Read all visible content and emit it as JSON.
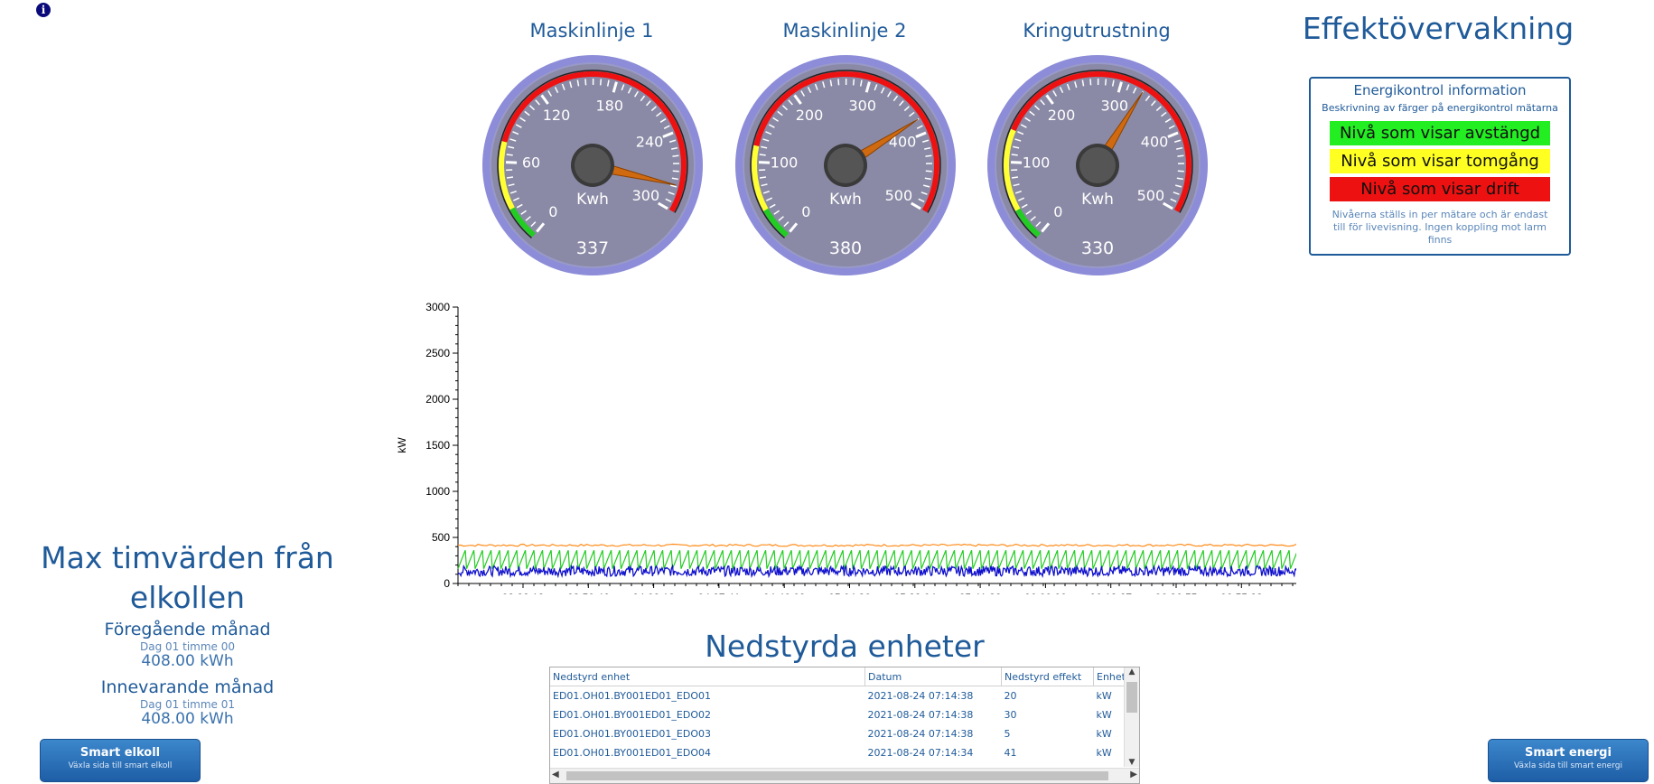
{
  "gauges": [
    {
      "title": "Maskinlinje 1",
      "unit": "Kwh",
      "value_label": "337",
      "value": 337,
      "max": 360,
      "ticks": [
        "0",
        "60",
        "120",
        "180",
        "240",
        "300"
      ],
      "zones": {
        "green_end": 30,
        "yellow_end": 90
      }
    },
    {
      "title": "Maskinlinje 2",
      "unit": "Kwh",
      "value_label": "380",
      "value": 380,
      "max": 500,
      "ticks": [
        "0",
        "100",
        "200",
        "300",
        "400",
        "500"
      ],
      "zones": {
        "green_end": 40,
        "yellow_end": 120
      }
    },
    {
      "title": "Kringutrustning",
      "unit": "Kwh",
      "value_label": "330",
      "value": 330,
      "max": 500,
      "ticks": [
        "0",
        "100",
        "200",
        "300",
        "400",
        "500"
      ],
      "zones": {
        "green_end": 40,
        "yellow_end": 140
      }
    }
  ],
  "header": {
    "title": "Effektövervakning"
  },
  "info_box": {
    "title": "Energikontrol information",
    "subtitle": "Beskrivning av färger på energikontrol mätarna",
    "levels": [
      {
        "label": "Nivå som visar avstängd",
        "color": "#22ee22"
      },
      {
        "label": "Nivå som visar tomgång",
        "color": "#ffff22"
      },
      {
        "label": "Nivå som visar drift",
        "color": "#ee1111"
      }
    ],
    "note": "Nivåerna ställs in per mätare och är endast till för livevisning. Ingen koppling mot larm finns"
  },
  "chart_data": {
    "type": "line",
    "ylabel": "kW",
    "xlabel": "",
    "ylim": [
      0,
      3000
    ],
    "yticks": [
      "0",
      "500",
      "1000",
      "1500",
      "2000",
      "2500",
      "3000"
    ],
    "xticks": [
      "03:32:18",
      "03:50:46",
      "04:09:13",
      "04:27:41",
      "04:46:09",
      "05:04:36",
      "05:23:04",
      "05:41:32",
      "06:00:00",
      "06:18:27",
      "06:36:55",
      "06:55:23"
    ],
    "series": [
      {
        "color": "#ff8c1a",
        "level": 415,
        "noise": 12,
        "shape": "flat"
      },
      {
        "color": "#22cc22",
        "level": 160,
        "amp": 200,
        "shape": "saw"
      },
      {
        "color": "#1010cc",
        "level": 135,
        "noise": 55,
        "shape": "noise"
      }
    ]
  },
  "max_values": {
    "title": "Max timvärden från elkollen",
    "previous": {
      "label": "Föregående månad",
      "sub": "Dag 01 timme 00",
      "value": "408.00 kWh"
    },
    "current": {
      "label": "Innevarande månad",
      "sub": "Dag 01 timme 01",
      "value": "408.00 kWh"
    }
  },
  "buttons": {
    "left": {
      "label": "Smart elkoll",
      "sub": "Växla sida till smart elkoll"
    },
    "right": {
      "label": "Smart energi",
      "sub": "Växla sida till smart energi"
    }
  },
  "table": {
    "title": "Nedstyrda enheter",
    "columns": [
      "Nedstyrd enhet",
      "Datum",
      "Nedstyrd effekt",
      "Enhet"
    ],
    "rows": [
      [
        "ED01.OH01.BY001ED01_EDO01",
        "2021-08-24 07:14:38",
        "20",
        "kW"
      ],
      [
        "ED01.OH01.BY001ED01_EDO02",
        "2021-08-24 07:14:38",
        "30",
        "kW"
      ],
      [
        "ED01.OH01.BY001ED01_EDO03",
        "2021-08-24 07:14:38",
        "5",
        "kW"
      ],
      [
        "ED01.OH01.BY001ED01_EDO04",
        "2021-08-24 07:14:34",
        "41",
        "kW"
      ]
    ]
  }
}
